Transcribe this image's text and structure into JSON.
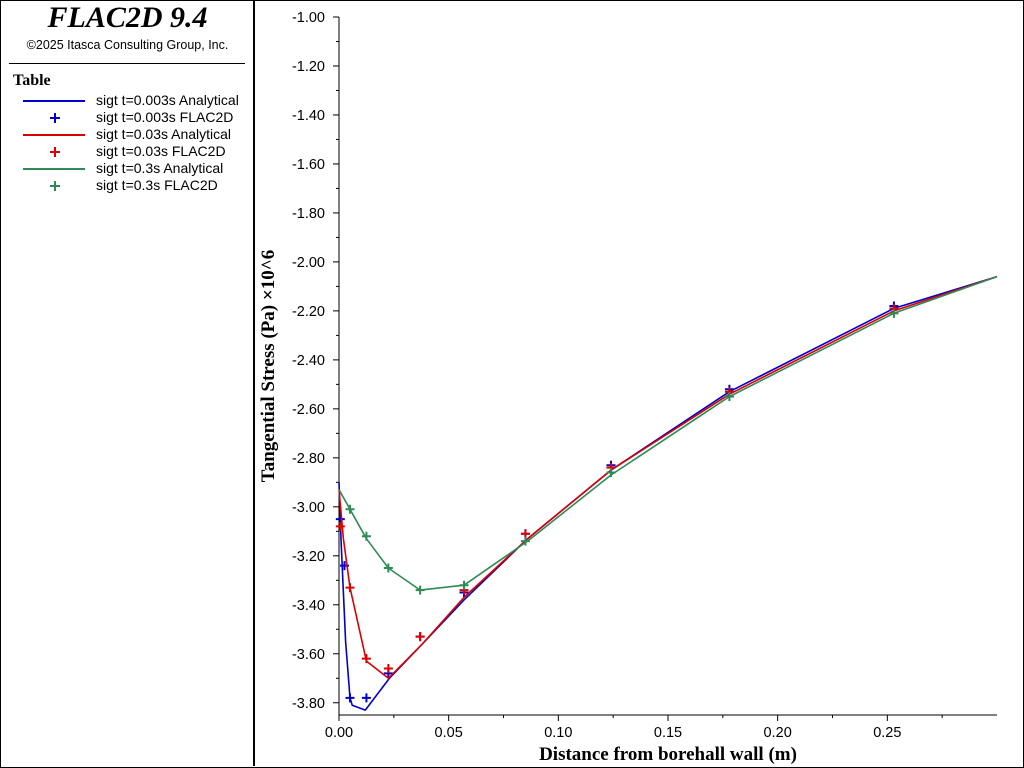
{
  "header": {
    "app_title": "FLAC2D 9.4",
    "copyright": "©2025 Itasca Consulting Group, Inc."
  },
  "legend": {
    "title": "Table",
    "items": [
      {
        "label": "sigt t=0.003s Analytical",
        "kind": "line",
        "color": "#0000cc"
      },
      {
        "label": "sigt t=0.003s FLAC2D",
        "kind": "marker",
        "color": "#0000cc"
      },
      {
        "label": "sigt t=0.03s Analytical",
        "kind": "line",
        "color": "#dd0000"
      },
      {
        "label": "sigt t=0.03s FLAC2D",
        "kind": "marker",
        "color": "#dd0000"
      },
      {
        "label": "sigt t=0.3s Analytical",
        "kind": "line",
        "color": "#2e8b57"
      },
      {
        "label": "sigt t=0.3s FLAC2D",
        "kind": "marker",
        "color": "#2e8b57"
      }
    ]
  },
  "chart_data": {
    "type": "line",
    "xlabel": "Distance from borehall wall (m)",
    "ylabel": "Tangential Stress (Pa) ×10^6",
    "xlim": [
      0,
      0.3
    ],
    "ylim": [
      -3.85,
      -1.0
    ],
    "xticks": [
      0.0,
      0.05,
      0.1,
      0.15,
      0.2,
      0.25
    ],
    "xtick_labels": [
      "0.00",
      "0.05",
      "0.10",
      "0.15",
      "0.20",
      "0.25"
    ],
    "yticks": [
      -1.0,
      -1.2,
      -1.4,
      -1.6,
      -1.8,
      -2.0,
      -2.2,
      -2.4,
      -2.6,
      -2.8,
      -3.0,
      -3.2,
      -3.4,
      -3.6,
      -3.8
    ],
    "ytick_labels": [
      "-1.00",
      "-1.20",
      "-1.40",
      "-1.60",
      "-1.80",
      "-2.00",
      "-2.20",
      "-2.40",
      "-2.60",
      "-2.80",
      "-3.00",
      "-3.20",
      "-3.40",
      "-3.60",
      "-3.80"
    ],
    "grid": false,
    "series": [
      {
        "name": "sigt t=0.003s Analytical",
        "kind": "line",
        "color": "#0000cc",
        "x": [
          0.0,
          0.001,
          0.003,
          0.005,
          0.006,
          0.012,
          0.023,
          0.038,
          0.057,
          0.086,
          0.124,
          0.178,
          0.253,
          0.3
        ],
        "y": [
          -2.9,
          -3.15,
          -3.55,
          -3.78,
          -3.81,
          -3.83,
          -3.7,
          -3.56,
          -3.38,
          -3.13,
          -2.85,
          -2.53,
          -2.19,
          -2.06
        ]
      },
      {
        "name": "sigt t=0.003s FLAC2D",
        "kind": "marker",
        "color": "#0000cc",
        "x": [
          0.0006,
          0.0025,
          0.005,
          0.0125,
          0.0225,
          0.037,
          0.057,
          0.085,
          0.124,
          0.178,
          0.253
        ],
        "y": [
          -3.05,
          -3.24,
          -3.78,
          -3.78,
          -3.68,
          -3.53,
          -3.35,
          -3.11,
          -2.83,
          -2.52,
          -2.18
        ]
      },
      {
        "name": "sigt t=0.03s Analytical",
        "kind": "line",
        "color": "#dd0000",
        "x": [
          0.0,
          0.002,
          0.005,
          0.0125,
          0.0225,
          0.038,
          0.057,
          0.086,
          0.124,
          0.178,
          0.253,
          0.3
        ],
        "y": [
          -2.93,
          -3.13,
          -3.33,
          -3.63,
          -3.7,
          -3.56,
          -3.37,
          -3.13,
          -2.85,
          -2.54,
          -2.2,
          -2.06
        ]
      },
      {
        "name": "sigt t=0.03s FLAC2D",
        "kind": "marker",
        "color": "#dd0000",
        "x": [
          0.0006,
          0.005,
          0.0125,
          0.0225,
          0.037,
          0.057,
          0.085,
          0.124,
          0.178,
          0.253
        ],
        "y": [
          -3.08,
          -3.33,
          -3.62,
          -3.66,
          -3.53,
          -3.34,
          -3.11,
          -2.84,
          -2.53,
          -2.19
        ]
      },
      {
        "name": "sigt t=0.3s Analytical",
        "kind": "line",
        "color": "#2e8b57",
        "x": [
          0.0,
          0.005,
          0.0125,
          0.0225,
          0.037,
          0.057,
          0.086,
          0.124,
          0.178,
          0.253,
          0.3
        ],
        "y": [
          -2.93,
          -3.01,
          -3.13,
          -3.25,
          -3.34,
          -3.32,
          -3.14,
          -2.87,
          -2.55,
          -2.21,
          -2.06
        ]
      },
      {
        "name": "sigt t=0.3s FLAC2D",
        "kind": "marker",
        "color": "#2e8b57",
        "x": [
          0.005,
          0.0125,
          0.0225,
          0.037,
          0.057,
          0.085,
          0.124,
          0.178,
          0.253
        ],
        "y": [
          -3.01,
          -3.12,
          -3.25,
          -3.34,
          -3.32,
          -3.14,
          -2.86,
          -2.55,
          -2.21
        ]
      }
    ]
  }
}
